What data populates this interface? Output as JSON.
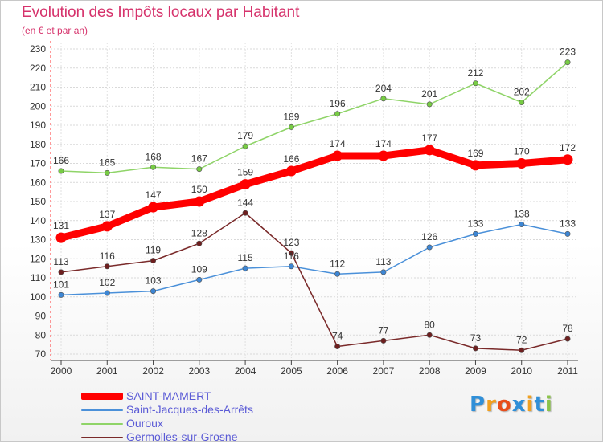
{
  "title": "Evolution des Impôts locaux par Habitant",
  "subtitle": "(en € et par an)",
  "logo": {
    "letters": [
      "P",
      "r",
      "o",
      "x",
      "i",
      "t",
      "i"
    ],
    "colors": [
      "#2f8fd8",
      "#f0a020",
      "#e84e1b",
      "#2f8fd8",
      "#f0a020",
      "#2f8fd8",
      "#8bc34a"
    ]
  },
  "chart_data": {
    "type": "line",
    "categories": [
      "2000",
      "2001",
      "2002",
      "2003",
      "2004",
      "2005",
      "2006",
      "2007",
      "2008",
      "2009",
      "2010",
      "2011"
    ],
    "ylim": [
      70,
      230
    ],
    "yticks": [
      "70",
      "80",
      "90",
      "100",
      "110",
      "120",
      "130",
      "140",
      "150",
      "160",
      "170",
      "180",
      "190",
      "200",
      "210",
      "220",
      "230"
    ],
    "grid": "horizontal",
    "legend_position": "bottom-left",
    "series": [
      {
        "name": "SAINT-MAMERT",
        "values": [
          131,
          137,
          147,
          150,
          159,
          166,
          174,
          174,
          177,
          169,
          170,
          172
        ],
        "color": "#ff0000",
        "emphasis": true
      },
      {
        "name": "Saint-Jacques-des-Arrêts",
        "values": [
          101,
          102,
          103,
          109,
          115,
          116,
          112,
          113,
          126,
          133,
          138,
          133
        ],
        "color": "#4a90d9",
        "point_color": "#3d86d4"
      },
      {
        "name": "Ouroux",
        "values": [
          166,
          165,
          168,
          167,
          179,
          189,
          196,
          204,
          201,
          212,
          202,
          223
        ],
        "color": "#8fd468",
        "point_color": "#77cc44"
      },
      {
        "name": "Germolles-sur-Grosne",
        "values": [
          113,
          116,
          119,
          128,
          144,
          123,
          74,
          77,
          80,
          73,
          72,
          78
        ],
        "color": "#7a2a2a",
        "point_color": "#6e1f1f"
      }
    ]
  }
}
